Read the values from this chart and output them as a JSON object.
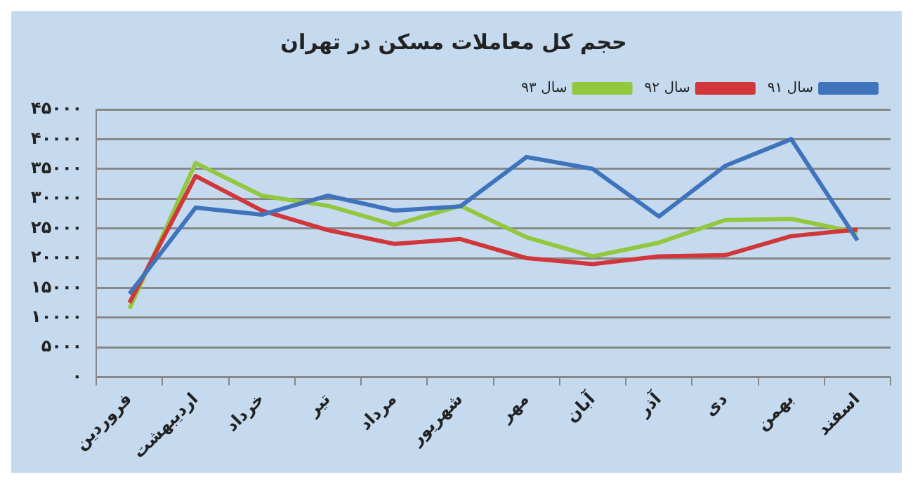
{
  "chart_data": {
    "type": "line",
    "title": "حجم کل معاملات مسکن در تهران",
    "categories": [
      "فروردین",
      "اردیبهشت",
      "خرداد",
      "تیر",
      "مرداد",
      "شهریور",
      "مهر",
      "آبان",
      "آذر",
      "دی",
      "بهمن",
      "اسفند"
    ],
    "series": [
      {
        "name": "سال ۹۱",
        "color": "#3f74bc",
        "values": [
          14000,
          28500,
          27300,
          30500,
          28000,
          28700,
          37000,
          35000,
          27000,
          35500,
          40000,
          23000
        ]
      },
      {
        "name": "سال ۹۲",
        "color": "#d0363a",
        "values": [
          12500,
          33800,
          28000,
          24700,
          22400,
          23200,
          20000,
          19000,
          20300,
          20500,
          23700,
          24800
        ]
      },
      {
        "name": "سال ۹۳",
        "color": "#92c83e",
        "values": [
          11500,
          36000,
          30500,
          28800,
          25600,
          28800,
          23500,
          20300,
          22600,
          26400,
          26600,
          24300
        ]
      }
    ],
    "ylim": [
      0,
      45000
    ],
    "yticks": [
      {
        "value": 0,
        "label": "۰"
      },
      {
        "value": 5000,
        "label": "۵۰۰۰"
      },
      {
        "value": 10000,
        "label": "۱۰۰۰۰"
      },
      {
        "value": 15000,
        "label": "۱۵۰۰۰"
      },
      {
        "value": 20000,
        "label": "۲۰۰۰۰"
      },
      {
        "value": 25000,
        "label": "۲۵۰۰۰"
      },
      {
        "value": 30000,
        "label": "۳۰۰۰۰"
      },
      {
        "value": 35000,
        "label": "۳۵۰۰۰"
      },
      {
        "value": 40000,
        "label": "۴۰۰۰۰"
      },
      {
        "value": 45000,
        "label": "۴۵۰۰۰"
      }
    ],
    "grid": "y",
    "legend": "top right",
    "marker": "none",
    "line_style": "solid"
  }
}
